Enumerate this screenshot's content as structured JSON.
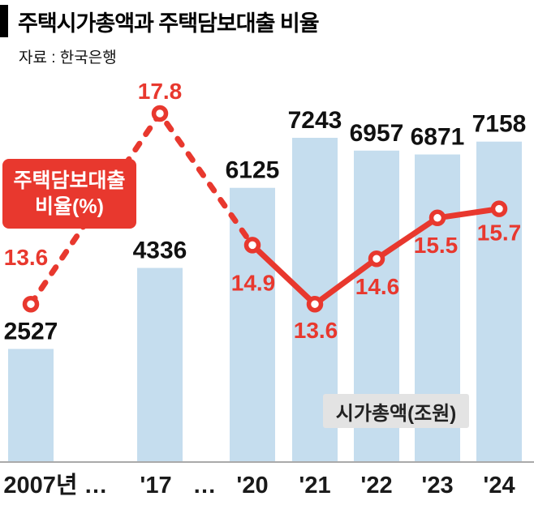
{
  "header": {
    "title": "주택시가총액과 주택담보대출 비율",
    "source": "자료 : 한국은행"
  },
  "legend": {
    "line_label_line1": "주택담보대출",
    "line_label_line2": "비율(%)",
    "bar_label": "시가총액(조원)"
  },
  "chart_data": {
    "type": "bar+line",
    "title": "주택시가총액과 주택담보대출 비율",
    "source": "자료 : 한국은행",
    "categories": [
      "2007년",
      "'17",
      "'20",
      "'21",
      "'22",
      "'23",
      "'24"
    ],
    "x_axis_ticks": [
      "2007년",
      "…",
      "'17",
      "…",
      "'20",
      "'21",
      "'22",
      "'23",
      "'24"
    ],
    "series": [
      {
        "name": "시가총액(조원)",
        "type": "bar",
        "values": [
          2527,
          4336,
          6125,
          7243,
          6957,
          6871,
          7158
        ]
      },
      {
        "name": "주택담보대출 비율(%)",
        "type": "line",
        "values": [
          13.6,
          17.8,
          14.9,
          13.6,
          14.6,
          15.5,
          15.7
        ],
        "dashed_until_index": 2,
        "marker": "open-circle"
      }
    ],
    "ylim_bar": [
      0,
      7600
    ],
    "ylim_line": [
      13,
      18
    ],
    "grid": false,
    "legend_position": "in-plot-labels",
    "colors": {
      "bar": "#c5ddee",
      "line": "#e8382e",
      "line_label_box": "#e8382e",
      "bar_label_box": "#e3e3e3",
      "bar_value_text": "#111111",
      "axis_line": "#aaaaaa",
      "axis_text": "#1a1a1a"
    }
  }
}
